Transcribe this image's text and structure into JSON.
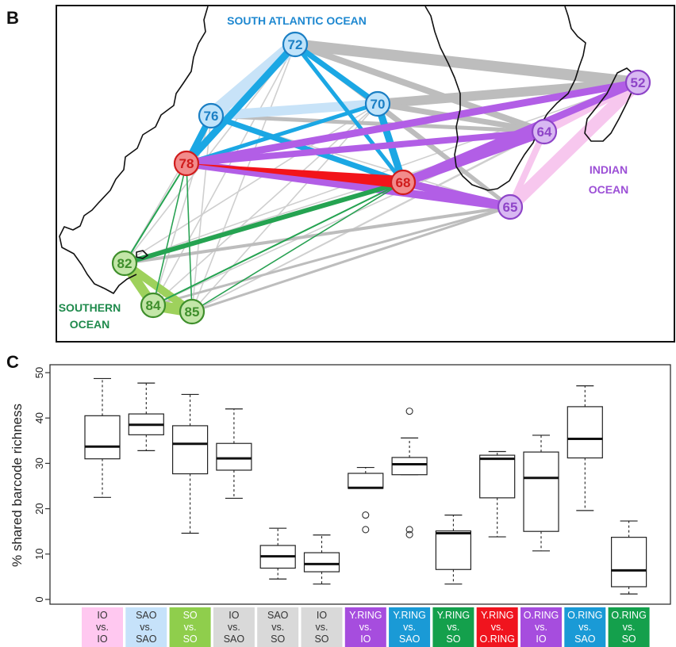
{
  "panel_b": {
    "letter": "B",
    "region_labels": [
      {
        "id": "sao",
        "lines": [
          "SOUTH ATLANTIC OCEAN"
        ],
        "color": "#1e88d0"
      },
      {
        "id": "io",
        "lines": [
          "INDIAN",
          "OCEAN"
        ],
        "color": "#9c4fd6"
      },
      {
        "id": "so",
        "lines": [
          "SOUTHERN",
          "OCEAN"
        ],
        "color": "#1f8a4c"
      }
    ],
    "colors": {
      "io_fill": "#d8b8f2",
      "io_stroke": "#8e44c8",
      "sao_fill": "#bfe3fa",
      "sao_stroke": "#1b7fc4",
      "so_fill": "#c3e6a8",
      "so_stroke": "#3f8f2c",
      "ring_fill": "#f28b8b",
      "ring_stroke": "#d01c1c"
    },
    "stations": [
      {
        "label": "72",
        "group": "sao"
      },
      {
        "label": "76",
        "group": "sao"
      },
      {
        "label": "70",
        "group": "sao"
      },
      {
        "label": "78",
        "group": "ring"
      },
      {
        "label": "68",
        "group": "ring"
      },
      {
        "label": "52",
        "group": "io"
      },
      {
        "label": "64",
        "group": "io"
      },
      {
        "label": "65",
        "group": "io"
      },
      {
        "label": "82",
        "group": "so"
      },
      {
        "label": "84",
        "group": "so"
      },
      {
        "label": "85",
        "group": "so"
      }
    ]
  },
  "panel_c": {
    "letter": "C"
  },
  "chart_data": {
    "type": "box",
    "title": "",
    "ylabel": "% shared barcode richness",
    "ylim": [
      0,
      50
    ],
    "yticks": [
      0,
      10,
      20,
      30,
      40,
      50
    ],
    "categories": [
      {
        "lines": [
          "IO",
          "vs.",
          "IO"
        ],
        "color": "#ffc8f0",
        "text_color": "#333333"
      },
      {
        "lines": [
          "SAO",
          "vs.",
          "SAO"
        ],
        "color": "#c6e2fa",
        "text_color": "#333333"
      },
      {
        "lines": [
          "SO",
          "vs.",
          "SO"
        ],
        "color": "#8fce4c",
        "text_color": "#ffffff"
      },
      {
        "lines": [
          "IO",
          "vs.",
          "SAO"
        ],
        "color": "#d9d9d9",
        "text_color": "#333333"
      },
      {
        "lines": [
          "SAO",
          "vs.",
          "SO"
        ],
        "color": "#d9d9d9",
        "text_color": "#333333"
      },
      {
        "lines": [
          "IO",
          "vs.",
          "SO"
        ],
        "color": "#d9d9d9",
        "text_color": "#333333"
      },
      {
        "lines": [
          "Y.RING",
          "vs.",
          "IO"
        ],
        "color": "#a64dde",
        "text_color": "#ffffff"
      },
      {
        "lines": [
          "Y.RING",
          "vs.",
          "SAO"
        ],
        "color": "#1a9ad6",
        "text_color": "#ffffff"
      },
      {
        "lines": [
          "Y.RING",
          "vs.",
          "SO"
        ],
        "color": "#14a04c",
        "text_color": "#ffffff"
      },
      {
        "lines": [
          "Y.RING",
          "vs.",
          "O.RING"
        ],
        "color": "#f0141e",
        "text_color": "#ffffff"
      },
      {
        "lines": [
          "O.RING",
          "vs.",
          "IO"
        ],
        "color": "#a64dde",
        "text_color": "#ffffff"
      },
      {
        "lines": [
          "O.RING",
          "vs.",
          "SAO"
        ],
        "color": "#1a9ad6",
        "text_color": "#ffffff"
      },
      {
        "lines": [
          "O.RING",
          "vs.",
          "SO"
        ],
        "color": "#14a04c",
        "text_color": "#ffffff"
      }
    ],
    "boxes": [
      {
        "whisker_low": 22.5,
        "q1": 31,
        "median": 33.7,
        "q3": 40.5,
        "whisker_high": 48.7,
        "outliers": []
      },
      {
        "whisker_low": 32.8,
        "q1": 36.3,
        "median": 38.5,
        "q3": 40.9,
        "whisker_high": 47.7,
        "outliers": []
      },
      {
        "whisker_low": 14.6,
        "q1": 27.7,
        "median": 34.3,
        "q3": 38.3,
        "whisker_high": 45.2,
        "outliers": []
      },
      {
        "whisker_low": 22.3,
        "q1": 28.5,
        "median": 31.1,
        "q3": 34.4,
        "whisker_high": 42.0,
        "outliers": []
      },
      {
        "whisker_low": 4.5,
        "q1": 6.9,
        "median": 9.5,
        "q3": 11.9,
        "whisker_high": 15.7,
        "outliers": []
      },
      {
        "whisker_low": 3.4,
        "q1": 6.1,
        "median": 7.8,
        "q3": 10.3,
        "whisker_high": 14.2,
        "outliers": []
      },
      {
        "whisker_low": 24.5,
        "q1": 24.5,
        "median": 24.6,
        "q3": 27.8,
        "whisker_high": 29.1,
        "outliers": [
          18.6,
          15.4
        ]
      },
      {
        "whisker_low": 27.5,
        "q1": 27.5,
        "median": 29.8,
        "q3": 31.3,
        "whisker_high": 35.6,
        "outliers": [
          41.5,
          15.4,
          14.3
        ]
      },
      {
        "whisker_low": 3.4,
        "q1": 6.6,
        "median": 14.6,
        "q3": 15.1,
        "whisker_high": 18.6,
        "outliers": []
      },
      {
        "whisker_low": 13.8,
        "q1": 22.4,
        "median": 31.0,
        "q3": 31.8,
        "whisker_high": 32.6,
        "outliers": []
      },
      {
        "whisker_low": 10.7,
        "q1": 15.0,
        "median": 26.8,
        "q3": 32.5,
        "whisker_high": 36.2,
        "outliers": []
      },
      {
        "whisker_low": 19.6,
        "q1": 31.2,
        "median": 35.4,
        "q3": 42.5,
        "whisker_high": 47.1,
        "outliers": []
      },
      {
        "whisker_low": 1.2,
        "q1": 2.8,
        "median": 6.4,
        "q3": 13.7,
        "whisker_high": 17.3,
        "outliers": []
      }
    ]
  }
}
